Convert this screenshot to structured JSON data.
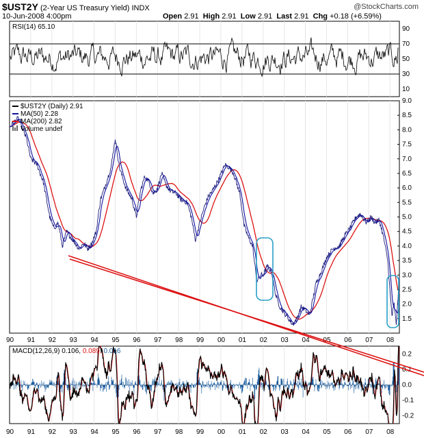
{
  "header": {
    "symbol": "$UST2Y",
    "name": "(2-Year US Treasury Yield)",
    "exchange": "INDX",
    "date": "10-Jun-2008 4:00pm",
    "open_label": "Open",
    "open": "2.91",
    "high_label": "High",
    "high": "2.91",
    "low_label": "Low",
    "low": "2.91",
    "last_label": "Last",
    "last": "2.91",
    "chg_label": "Chg",
    "chg": "+0.18 (+6.59%)",
    "credit": "@StockCharts.com"
  },
  "colors": {
    "price": "#1a1a7a",
    "ma50": "#1010a0",
    "ma200": "#dd1111",
    "trendline": "#dd1111",
    "highlight": "#2aa0c8",
    "macd": "#000000",
    "signal": "#dd1111",
    "histogram": "#2060a0",
    "volume": "#888888"
  },
  "chart_data": [
    {
      "type": "line",
      "panel": "rsi",
      "legend": "RSI(14) 65.10",
      "ylim": [
        0,
        100
      ],
      "yticks": [
        "90",
        "70",
        "50",
        "30",
        "10"
      ],
      "ytick_values": [
        90,
        70,
        50,
        30,
        10
      ],
      "reference_lines": [
        70,
        30
      ],
      "last": 65.1
    },
    {
      "type": "line",
      "panel": "price",
      "legend": [
        "$UST2Y (Daily) 2.91",
        "MA(50) 2.28",
        "MA(200) 2.82",
        "Volume undef"
      ],
      "ylim": [
        1.0,
        9.0
      ],
      "yticks": [
        "9.0",
        "8.5",
        "8.0",
        "7.5",
        "7.0",
        "6.5",
        "6.0",
        "5.5",
        "5.0",
        "4.5",
        "4.0",
        "3.5",
        "3.0",
        "2.5",
        "2.0",
        "1.5"
      ],
      "ytick_values": [
        9.0,
        8.5,
        8.0,
        7.5,
        7.0,
        6.5,
        6.0,
        5.5,
        5.0,
        4.5,
        4.0,
        3.5,
        3.0,
        2.5,
        2.0,
        1.5
      ],
      "x_range": [
        1990.0,
        2008.45
      ],
      "series": [
        {
          "name": "$UST2Y (Daily)",
          "last": 2.91,
          "x": [
            1990.0,
            1990.4,
            1990.8,
            1991.0,
            1991.3,
            1991.6,
            1991.9,
            1992.1,
            1992.3,
            1992.5,
            1992.7,
            1992.9,
            1993.1,
            1993.3,
            1993.5,
            1993.7,
            1993.9,
            1994.1,
            1994.3,
            1994.5,
            1994.8,
            1995.0,
            1995.2,
            1995.5,
            1995.8,
            1996.0,
            1996.2,
            1996.4,
            1996.6,
            1996.8,
            1997.0,
            1997.2,
            1997.4,
            1997.6,
            1997.9,
            1998.1,
            1998.4,
            1998.6,
            1998.8,
            1999.0,
            1999.2,
            1999.4,
            1999.6,
            1999.9,
            2000.2,
            2000.4,
            2000.6,
            2000.9,
            2001.1,
            2001.3,
            2001.5,
            2001.7,
            2001.9,
            2002.0,
            2002.2,
            2002.4,
            2002.6,
            2002.8,
            2003.0,
            2003.2,
            2003.4,
            2003.6,
            2003.8,
            2004.0,
            2004.2,
            2004.5,
            2004.8,
            2005.0,
            2005.3,
            2005.6,
            2005.9,
            2006.1,
            2006.4,
            2006.6,
            2006.9,
            2007.1,
            2007.3,
            2007.5,
            2007.7,
            2007.9,
            2008.0,
            2008.1,
            2008.2,
            2008.3,
            2008.45
          ],
          "y": [
            8.1,
            8.4,
            7.7,
            7.0,
            6.8,
            6.2,
            5.0,
            4.6,
            4.8,
            4.0,
            4.5,
            4.3,
            4.1,
            3.9,
            4.1,
            3.9,
            4.1,
            4.5,
            5.6,
            6.0,
            6.7,
            7.7,
            6.7,
            6.0,
            5.6,
            5.0,
            5.9,
            6.4,
            6.2,
            5.8,
            6.0,
            6.5,
            6.1,
            5.9,
            5.8,
            5.6,
            5.5,
            5.0,
            4.2,
            4.8,
            5.3,
            5.7,
            5.9,
            6.3,
            6.8,
            6.7,
            6.5,
            5.8,
            4.7,
            4.3,
            4.0,
            2.8,
            3.0,
            3.0,
            3.3,
            3.1,
            2.3,
            1.9,
            1.7,
            1.5,
            1.3,
            1.5,
            1.9,
            1.8,
            1.6,
            2.7,
            3.2,
            3.6,
            3.9,
            4.0,
            4.4,
            4.6,
            5.0,
            5.1,
            4.8,
            5.0,
            4.8,
            4.9,
            4.3,
            3.5,
            2.5,
            1.6,
            2.0,
            1.3,
            2.91
          ]
        },
        {
          "name": "MA(50)",
          "last": 2.28
        },
        {
          "name": "MA(200)",
          "last": 2.82
        },
        {
          "name": "Volume",
          "last": "undef"
        }
      ],
      "annotations": [
        "two red trendlines drawn from 1993 lows through 2003 lows",
        "blue rounded boxes highlighting 2002 and 2008 drops"
      ]
    },
    {
      "type": "line",
      "panel": "macd",
      "legend": {
        "label": "MACD(12,26,9)",
        "macd": "0.106,",
        "signal": "0.089,",
        "hist": "0.016"
      },
      "ylim": [
        -0.25,
        0.25
      ],
      "yticks": [
        "0.2",
        "0.1",
        "0.0",
        "-0.1",
        "-0.2"
      ],
      "ytick_values": [
        0.2,
        0.1,
        0.0,
        -0.1,
        -0.2
      ]
    }
  ],
  "x_axis_labels": [
    "90",
    "91",
    "92",
    "93",
    "94",
    "95",
    "96",
    "97",
    "98",
    "99",
    "00",
    "01",
    "02",
    "03",
    "04",
    "05",
    "06",
    "07",
    "08"
  ]
}
